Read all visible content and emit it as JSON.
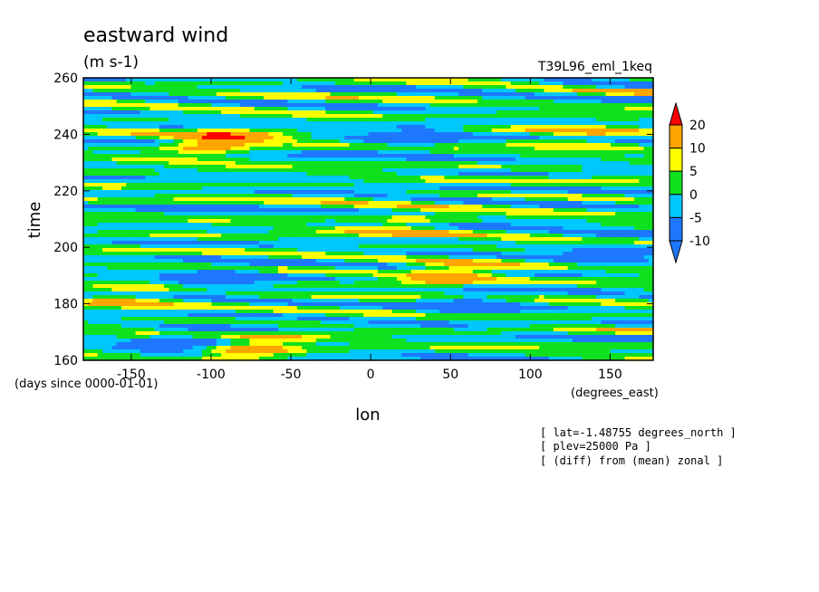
{
  "chart_data": {
    "type": "heatmap",
    "title": "eastward wind",
    "units": "(m s-1)",
    "run_label": "T39L96_eml_1keq",
    "xlabel": "lon",
    "xunits": "(degrees_east)",
    "ylabel": "time",
    "yunits": "(days since 0000-01-01)",
    "xlim": [
      -180,
      177
    ],
    "ylim": [
      160,
      260
    ],
    "xticks": [
      -150,
      -100,
      -50,
      0,
      50,
      100,
      150
    ],
    "yticks": [
      160,
      180,
      200,
      220,
      240,
      260
    ],
    "levels": [
      -10,
      -5,
      0,
      5,
      10,
      20
    ],
    "colors": [
      "#1e78ff",
      "#00c8ff",
      "#0fe11e",
      "#ffff00",
      "#ffa500",
      "#ff0000"
    ],
    "colorbar_labels": [
      "-10",
      "-5",
      "0",
      "5",
      "10",
      "20"
    ],
    "notes": [
      "[ lat=-1.48755 degrees_north ]",
      "[ plev=25000 Pa ]",
      "[ (diff) from (mean) zonal ]"
    ],
    "features": [
      {
        "lon": -95,
        "time": 237.5,
        "value": 22
      },
      {
        "lon": 50,
        "time": 190,
        "value": 18
      },
      {
        "lon": -75,
        "time": 164,
        "value": 18
      },
      {
        "lon": 20,
        "time": 208,
        "value": 10
      },
      {
        "lon": 130,
        "time": 240,
        "value": 10
      },
      {
        "lon": -150,
        "time": 182,
        "value": 9
      },
      {
        "lon": -95,
        "time": 189,
        "value": -14
      },
      {
        "lon": 60,
        "time": 180,
        "value": -13
      },
      {
        "lon": 25,
        "time": 239,
        "value": -13
      },
      {
        "lon": -115,
        "time": 166,
        "value": -11
      },
      {
        "lon": 150,
        "time": 198,
        "value": -10
      }
    ]
  }
}
